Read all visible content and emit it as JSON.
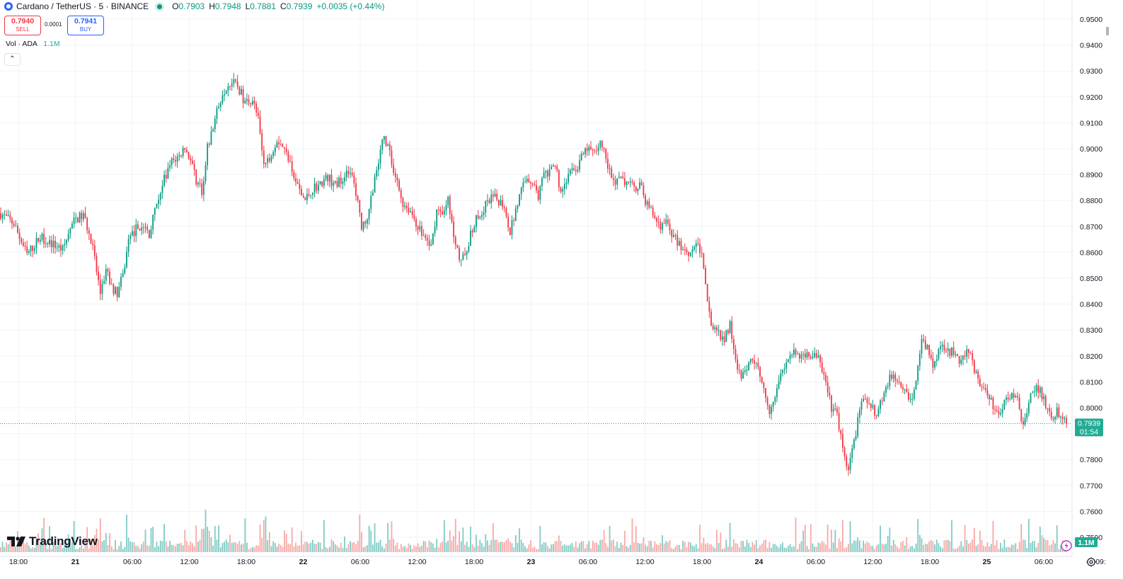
{
  "header": {
    "symbol": "Cardano / TetherUS · 5 · BINANCE",
    "o_label": "O",
    "o_value": "0.7903",
    "h_label": "H",
    "h_value": "0.7948",
    "l_label": "L",
    "l_value": "0.7881",
    "c_label": "C",
    "c_value": "0.7939",
    "change": "+0.0035 (+0.44%)"
  },
  "trade": {
    "sell_price": "0.7940",
    "sell_label": "SELL",
    "spread": "0.0001",
    "buy_price": "0.7941",
    "buy_label": "BUY"
  },
  "volume_indicator": {
    "label": "Vol · ADA",
    "value": "1.1M"
  },
  "collapse_icon": "chevron-up-icon",
  "branding": {
    "logo_text": "TradingView"
  },
  "price_badge": {
    "price": "0.7939",
    "countdown": "01:54"
  },
  "volume_badge": {
    "value": "1.1M"
  },
  "colors": {
    "up": "#089981",
    "down": "#f23645",
    "up_volume": "#80cbc4",
    "down_volume": "#f7a9a7",
    "grid": "#f0f3fa",
    "badge": "#22ab94"
  },
  "chart_data": {
    "type": "candlestick",
    "title": "Cardano / TetherUS · 5 · BINANCE",
    "ylim": [
      0.7458,
      0.9558
    ],
    "y_ticks": [
      "0.9500",
      "0.9400",
      "0.9300",
      "0.9200",
      "0.9100",
      "0.9000",
      "0.8900",
      "0.8800",
      "0.8700",
      "0.8600",
      "0.8500",
      "0.8400",
      "0.8300",
      "0.8200",
      "0.8100",
      "0.8000",
      "0.7900",
      "0.7800",
      "0.7700",
      "0.7600",
      "0.7500"
    ],
    "x_ticks": [
      "18:00",
      "21",
      "06:00",
      "12:00",
      "18:00",
      "22",
      "06:00",
      "12:00",
      "18:00",
      "23",
      "06:00",
      "12:00",
      "18:00",
      "24",
      "06:00",
      "12:00",
      "18:00",
      "25",
      "06:00",
      "09:"
    ],
    "grid": true,
    "last_close": 0.7939,
    "price_path": [
      [
        0,
        0.875
      ],
      [
        7,
        0.871
      ],
      [
        14,
        0.859
      ],
      [
        21,
        0.866
      ],
      [
        28,
        0.863
      ],
      [
        33,
        0.861
      ],
      [
        37,
        0.869
      ],
      [
        40,
        0.873
      ],
      [
        44,
        0.874
      ],
      [
        46,
        0.87
      ],
      [
        49,
        0.861
      ],
      [
        53,
        0.844
      ],
      [
        56,
        0.853
      ],
      [
        59,
        0.847
      ],
      [
        62,
        0.844
      ],
      [
        65,
        0.851
      ],
      [
        68,
        0.864
      ],
      [
        72,
        0.869
      ],
      [
        76,
        0.87
      ],
      [
        79,
        0.867
      ],
      [
        83,
        0.879
      ],
      [
        87,
        0.888
      ],
      [
        91,
        0.895
      ],
      [
        95,
        0.897
      ],
      [
        98,
        0.901
      ],
      [
        101,
        0.895
      ],
      [
        104,
        0.888
      ],
      [
        107,
        0.884
      ],
      [
        110,
        0.9
      ],
      [
        114,
        0.911
      ],
      [
        118,
        0.922
      ],
      [
        122,
        0.926
      ],
      [
        126,
        0.924
      ],
      [
        130,
        0.918
      ],
      [
        134,
        0.919
      ],
      [
        137,
        0.911
      ],
      [
        140,
        0.893
      ],
      [
        143,
        0.897
      ],
      [
        147,
        0.904
      ],
      [
        150,
        0.901
      ],
      [
        154,
        0.895
      ],
      [
        158,
        0.885
      ],
      [
        162,
        0.88
      ],
      [
        166,
        0.885
      ],
      [
        170,
        0.886
      ],
      [
        174,
        0.889
      ],
      [
        178,
        0.886
      ],
      [
        182,
        0.889
      ],
      [
        186,
        0.891
      ],
      [
        189,
        0.883
      ],
      [
        192,
        0.87
      ],
      [
        195,
        0.874
      ],
      [
        198,
        0.885
      ],
      [
        201,
        0.895
      ],
      [
        204,
        0.905
      ],
      [
        207,
        0.898
      ],
      [
        210,
        0.889
      ],
      [
        214,
        0.879
      ],
      [
        218,
        0.876
      ],
      [
        222,
        0.87
      ],
      [
        226,
        0.865
      ],
      [
        229,
        0.862
      ],
      [
        232,
        0.876
      ],
      [
        235,
        0.876
      ],
      [
        238,
        0.88
      ],
      [
        241,
        0.867
      ],
      [
        244,
        0.859
      ],
      [
        247,
        0.857
      ],
      [
        250,
        0.868
      ],
      [
        253,
        0.873
      ],
      [
        256,
        0.876
      ],
      [
        259,
        0.879
      ],
      [
        262,
        0.881
      ],
      [
        265,
        0.88
      ],
      [
        268,
        0.878
      ],
      [
        271,
        0.868
      ],
      [
        274,
        0.876
      ],
      [
        277,
        0.884
      ],
      [
        280,
        0.889
      ],
      [
        283,
        0.887
      ],
      [
        286,
        0.882
      ],
      [
        289,
        0.89
      ],
      [
        292,
        0.89
      ],
      [
        295,
        0.894
      ],
      [
        298,
        0.883
      ],
      [
        301,
        0.888
      ],
      [
        304,
        0.892
      ],
      [
        307,
        0.893
      ],
      [
        310,
        0.898
      ],
      [
        313,
        0.9
      ],
      [
        316,
        0.898
      ],
      [
        319,
        0.903
      ],
      [
        322,
        0.896
      ],
      [
        325,
        0.889
      ],
      [
        328,
        0.887
      ],
      [
        331,
        0.888
      ],
      [
        334,
        0.886
      ],
      [
        337,
        0.885
      ],
      [
        340,
        0.886
      ],
      [
        343,
        0.88
      ],
      [
        346,
        0.876
      ],
      [
        349,
        0.872
      ],
      [
        352,
        0.87
      ],
      [
        355,
        0.871
      ],
      [
        358,
        0.866
      ],
      [
        361,
        0.863
      ],
      [
        364,
        0.861
      ],
      [
        367,
        0.86
      ],
      [
        370,
        0.864
      ],
      [
        373,
        0.859
      ],
      [
        376,
        0.84
      ],
      [
        379,
        0.83
      ],
      [
        382,
        0.828
      ],
      [
        385,
        0.827
      ],
      [
        388,
        0.832
      ],
      [
        391,
        0.819
      ],
      [
        394,
        0.81
      ],
      [
        397,
        0.816
      ],
      [
        400,
        0.819
      ],
      [
        403,
        0.815
      ],
      [
        406,
        0.809
      ],
      [
        409,
        0.797
      ],
      [
        412,
        0.806
      ],
      [
        415,
        0.813
      ],
      [
        418,
        0.818
      ],
      [
        421,
        0.821
      ],
      [
        424,
        0.82
      ],
      [
        427,
        0.82
      ],
      [
        430,
        0.821
      ],
      [
        433,
        0.82
      ],
      [
        436,
        0.818
      ],
      [
        439,
        0.809
      ],
      [
        442,
        0.8
      ],
      [
        445,
        0.797
      ],
      [
        448,
        0.784
      ],
      [
        451,
        0.776
      ],
      [
        454,
        0.787
      ],
      [
        457,
        0.799
      ],
      [
        460,
        0.804
      ],
      [
        463,
        0.802
      ],
      [
        466,
        0.797
      ],
      [
        469,
        0.804
      ],
      [
        472,
        0.81
      ],
      [
        475,
        0.813
      ],
      [
        478,
        0.81
      ],
      [
        481,
        0.808
      ],
      [
        484,
        0.803
      ],
      [
        487,
        0.81
      ],
      [
        490,
        0.826
      ],
      [
        493,
        0.823
      ],
      [
        496,
        0.816
      ],
      [
        499,
        0.823
      ],
      [
        502,
        0.824
      ],
      [
        505,
        0.822
      ],
      [
        508,
        0.82
      ],
      [
        511,
        0.818
      ],
      [
        514,
        0.823
      ],
      [
        517,
        0.818
      ],
      [
        520,
        0.81
      ],
      [
        523,
        0.808
      ],
      [
        526,
        0.803
      ],
      [
        529,
        0.8
      ],
      [
        532,
        0.799
      ],
      [
        535,
        0.803
      ],
      [
        538,
        0.805
      ],
      [
        541,
        0.803
      ],
      [
        544,
        0.793
      ],
      [
        547,
        0.803
      ],
      [
        550,
        0.808
      ],
      [
        553,
        0.806
      ],
      [
        556,
        0.801
      ],
      [
        559,
        0.796
      ],
      [
        562,
        0.799
      ],
      [
        565,
        0.796
      ],
      [
        567,
        0.7939
      ]
    ]
  }
}
